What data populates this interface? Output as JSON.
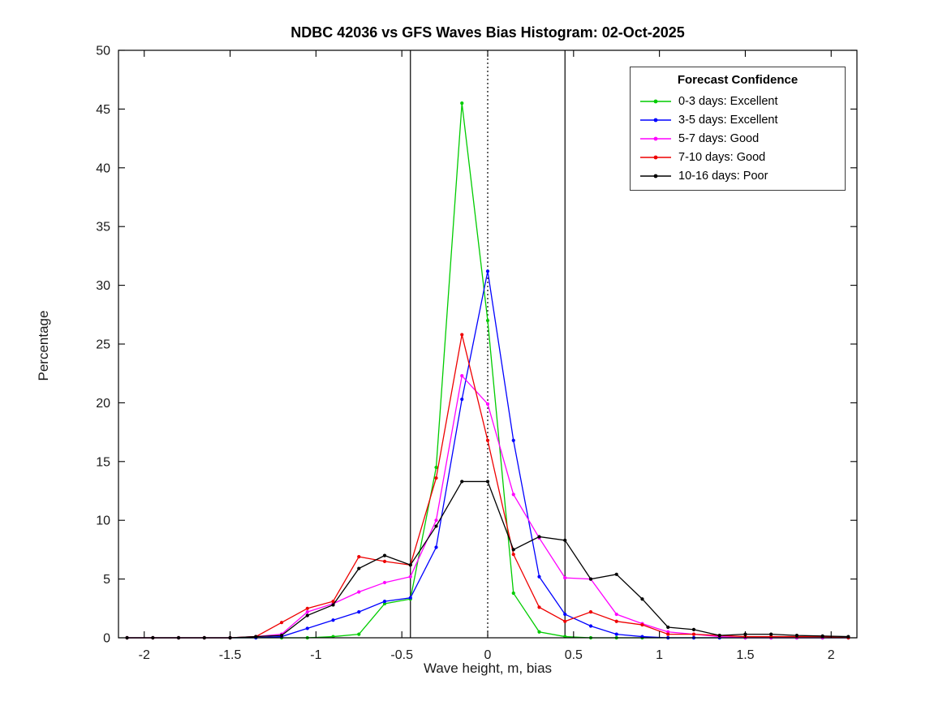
{
  "chart_data": {
    "type": "line",
    "title": "NDBC 42036 vs GFS Waves Bias Histogram: 02-Oct-2025",
    "xlabel": "Wave height, m, bias",
    "ylabel": "Percentage",
    "xlim": [
      -2.15,
      2.15
    ],
    "ylim": [
      0,
      50
    ],
    "xticks": [
      -2,
      -1.5,
      -1,
      -0.5,
      0,
      0.5,
      1,
      1.5,
      2
    ],
    "xtick_labels": [
      "-2",
      "-1.5",
      "-1",
      "-0.5",
      "0",
      "0.5",
      "1",
      "1.5",
      "2"
    ],
    "yticks": [
      0,
      5,
      10,
      15,
      20,
      25,
      30,
      35,
      40,
      45,
      50
    ],
    "ytick_labels": [
      "0",
      "5",
      "10",
      "15",
      "20",
      "25",
      "30",
      "35",
      "40",
      "45",
      "50"
    ],
    "grid": false,
    "x": [
      -2.1,
      -1.95,
      -1.8,
      -1.65,
      -1.5,
      -1.35,
      -1.2,
      -1.05,
      -0.9,
      -0.75,
      -0.6,
      -0.45,
      -0.3,
      -0.15,
      0,
      0.15,
      0.3,
      0.45,
      0.6,
      0.75,
      0.9,
      1.05,
      1.2,
      1.35,
      1.5,
      1.65,
      1.8,
      1.95,
      2.1
    ],
    "series": [
      {
        "name": "0-3 days: Excellent",
        "color": "#00cc00",
        "values": [
          0,
          0,
          0,
          0,
          0,
          0,
          0,
          0,
          0.1,
          0.3,
          2.9,
          3.3,
          14.5,
          45.5,
          27.0,
          3.8,
          0.5,
          0.1,
          0,
          0,
          0,
          0,
          0,
          0,
          0,
          0,
          0,
          0,
          0
        ]
      },
      {
        "name": "3-5 days: Excellent",
        "color": "#0000ff",
        "values": [
          0,
          0,
          0,
          0,
          0,
          0,
          0.1,
          0.8,
          1.5,
          2.2,
          3.1,
          3.4,
          7.7,
          20.3,
          31.2,
          16.8,
          5.2,
          2.0,
          1.0,
          0.3,
          0.1,
          0,
          0,
          0,
          0,
          0,
          0,
          0,
          0
        ]
      },
      {
        "name": "5-7 days: Good",
        "color": "#ff00ff",
        "values": [
          0,
          0,
          0,
          0,
          0,
          0.1,
          0.3,
          2.2,
          2.9,
          3.9,
          4.7,
          5.2,
          10.0,
          22.3,
          19.9,
          12.2,
          8.5,
          5.1,
          5.0,
          2.0,
          1.2,
          0.5,
          0.3,
          0.1,
          0,
          0,
          0,
          0,
          0
        ]
      },
      {
        "name": "7-10 days: Good",
        "color": "#ee0000",
        "values": [
          0,
          0,
          0,
          0,
          0,
          0.1,
          1.3,
          2.5,
          3.1,
          6.9,
          6.5,
          6.2,
          13.6,
          25.8,
          16.8,
          7.1,
          2.6,
          1.4,
          2.2,
          1.4,
          1.1,
          0.3,
          0.3,
          0.2,
          0.1,
          0.1,
          0.1,
          0.1,
          0
        ]
      },
      {
        "name": "10-16 days: Poor",
        "color": "#000000",
        "values": [
          0,
          0,
          0,
          0,
          0,
          0.1,
          0.2,
          1.9,
          2.8,
          5.9,
          7.0,
          6.2,
          9.5,
          13.3,
          13.3,
          7.5,
          8.6,
          8.3,
          5.0,
          5.4,
          3.3,
          0.9,
          0.7,
          0.2,
          0.3,
          0.3,
          0.2,
          0.15,
          0.1
        ]
      }
    ],
    "reference_lines": [
      {
        "x": -0.45,
        "style": "solid",
        "color": "#000000"
      },
      {
        "x": 0,
        "style": "dotted",
        "color": "#000000"
      },
      {
        "x": 0.45,
        "style": "solid",
        "color": "#000000"
      }
    ],
    "legend": {
      "title": "Forecast Confidence",
      "position": "top-right"
    }
  }
}
